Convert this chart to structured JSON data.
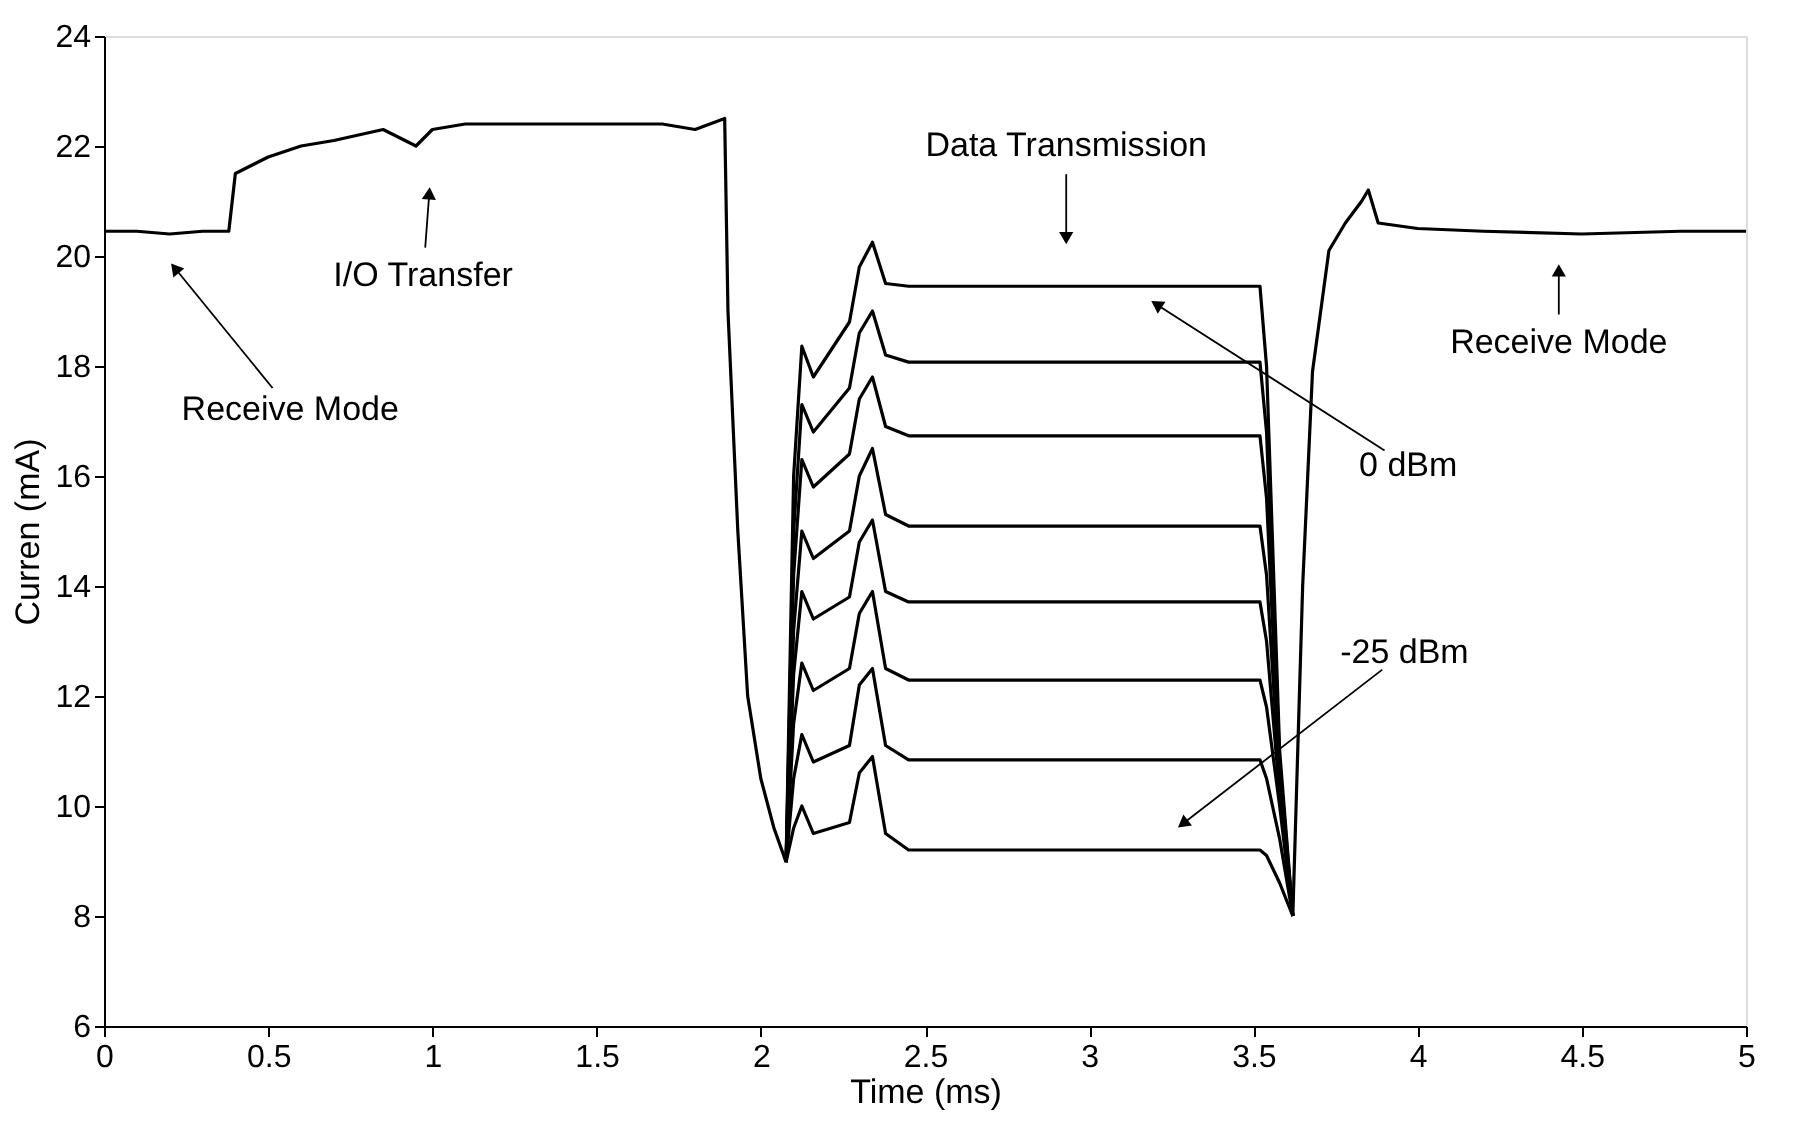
{
  "chart_data": {
    "type": "line",
    "xlabel": "Time (ms)",
    "ylabel": "Curren (mA)",
    "xlim": [
      0,
      5
    ],
    "xticks": [
      0,
      0.5,
      1,
      1.5,
      2,
      2.5,
      3,
      3.5,
      4,
      4.5,
      5
    ],
    "ylim": [
      6,
      24
    ],
    "yticks": [
      6,
      8,
      10,
      12,
      14,
      16,
      18,
      20,
      22,
      24
    ],
    "grid": false,
    "legend": false,
    "line_style": "solid",
    "series": [
      {
        "color": "#000000",
        "x": [
          0,
          0.1,
          0.2,
          0.3,
          0.38,
          0.4,
          0.5,
          0.6,
          0.7,
          0.85,
          0.95,
          1.0,
          1.1,
          1.3,
          1.5,
          1.7,
          1.8,
          1.89,
          1.9,
          1.93,
          1.96,
          2.0,
          2.04,
          2.077
        ],
        "values": [
          20.45,
          20.45,
          20.4,
          20.45,
          20.45,
          21.5,
          21.8,
          22.0,
          22.1,
          22.3,
          22.0,
          22.3,
          22.4,
          22.4,
          22.4,
          22.4,
          22.3,
          22.5,
          19.0,
          15.0,
          12.0,
          10.5,
          9.6,
          8.98
        ]
      },
      {
        "color": "#000000",
        "x": [
          2.077,
          2.1,
          2.125,
          2.16,
          2.27,
          2.3,
          2.34,
          2.38,
          2.45,
          3.0,
          3.52,
          3.54,
          3.58,
          3.62
        ],
        "values": [
          8.98,
          16.0,
          18.36,
          17.8,
          18.8,
          19.8,
          20.25,
          19.5,
          19.45,
          19.45,
          19.45,
          18.0,
          11.0,
          8.0
        ]
      },
      {
        "color": "#000000",
        "x": [
          2.077,
          2.1,
          2.125,
          2.16,
          2.27,
          2.3,
          2.34,
          2.38,
          2.45,
          3.0,
          3.52,
          3.54,
          3.58,
          3.62
        ],
        "values": [
          8.98,
          15.0,
          17.3,
          16.8,
          17.6,
          18.6,
          19.0,
          18.2,
          18.07,
          18.07,
          18.07,
          16.8,
          10.8,
          8.0
        ]
      },
      {
        "color": "#000000",
        "x": [
          2.077,
          2.1,
          2.125,
          2.16,
          2.27,
          2.3,
          2.34,
          2.38,
          2.45,
          3.0,
          3.52,
          3.54,
          3.58,
          3.62
        ],
        "values": [
          8.98,
          14.2,
          16.3,
          15.8,
          16.4,
          17.4,
          17.8,
          16.9,
          16.73,
          16.73,
          16.73,
          15.6,
          10.6,
          8.0
        ]
      },
      {
        "color": "#000000",
        "x": [
          2.077,
          2.1,
          2.125,
          2.16,
          2.27,
          2.3,
          2.34,
          2.38,
          2.45,
          3.0,
          3.52,
          3.54,
          3.58,
          3.62
        ],
        "values": [
          8.98,
          13.2,
          15.0,
          14.5,
          15.0,
          16.0,
          16.5,
          15.3,
          15.09,
          15.09,
          15.09,
          14.2,
          10.4,
          8.0
        ]
      },
      {
        "color": "#000000",
        "x": [
          2.077,
          2.1,
          2.125,
          2.16,
          2.27,
          2.3,
          2.34,
          2.38,
          2.45,
          3.0,
          3.52,
          3.54,
          3.58,
          3.62
        ],
        "values": [
          8.98,
          12.4,
          13.9,
          13.4,
          13.8,
          14.8,
          15.2,
          13.9,
          13.71,
          13.71,
          13.71,
          13.0,
          10.2,
          8.0
        ]
      },
      {
        "color": "#000000",
        "x": [
          2.077,
          2.1,
          2.125,
          2.16,
          2.27,
          2.3,
          2.34,
          2.38,
          2.45,
          3.0,
          3.52,
          3.54,
          3.58,
          3.62
        ],
        "values": [
          8.98,
          11.5,
          12.6,
          12.1,
          12.5,
          13.5,
          13.9,
          12.5,
          12.29,
          12.29,
          12.29,
          11.8,
          10.0,
          8.0
        ]
      },
      {
        "color": "#000000",
        "x": [
          2.077,
          2.1,
          2.125,
          2.16,
          2.27,
          2.3,
          2.34,
          2.38,
          2.45,
          3.0,
          3.52,
          3.54,
          3.58,
          3.62
        ],
        "values": [
          8.98,
          10.5,
          11.3,
          10.8,
          11.1,
          12.2,
          12.5,
          11.1,
          10.84,
          10.84,
          10.84,
          10.5,
          9.4,
          8.0
        ]
      },
      {
        "color": "#000000",
        "x": [
          2.077,
          2.1,
          2.125,
          2.16,
          2.27,
          2.3,
          2.34,
          2.38,
          2.45,
          3.0,
          3.52,
          3.54,
          3.58,
          3.62
        ],
        "values": [
          8.98,
          9.6,
          10.0,
          9.5,
          9.7,
          10.6,
          10.9,
          9.5,
          9.2,
          9.2,
          9.2,
          9.1,
          8.6,
          8.0
        ]
      },
      {
        "color": "#000000",
        "x": [
          3.62,
          3.63,
          3.65,
          3.68,
          3.73,
          3.78,
          3.83,
          3.85,
          3.88,
          4.0,
          4.2,
          4.5,
          4.8,
          5.0
        ],
        "values": [
          8.0,
          10.0,
          14.0,
          17.9,
          20.1,
          20.6,
          21.0,
          21.2,
          20.6,
          20.5,
          20.45,
          20.4,
          20.45,
          20.45
        ]
      }
    ],
    "annotations": [
      {
        "text": "Receive Mode",
        "x": 0.22,
        "y": 19.75
      },
      {
        "text": "I/O Transfer",
        "x": 0.99,
        "y": 21.1
      },
      {
        "text": "Data Transmission",
        "x": 2.93,
        "y": 20.36
      },
      {
        "text": "Receive Mode",
        "x": 4.43,
        "y": 19.7
      },
      {
        "text": "0 dBm",
        "x": 3.21,
        "y": 19.1
      },
      {
        "text": "-25 dBm",
        "x": 3.29,
        "y": 9.7
      }
    ]
  }
}
